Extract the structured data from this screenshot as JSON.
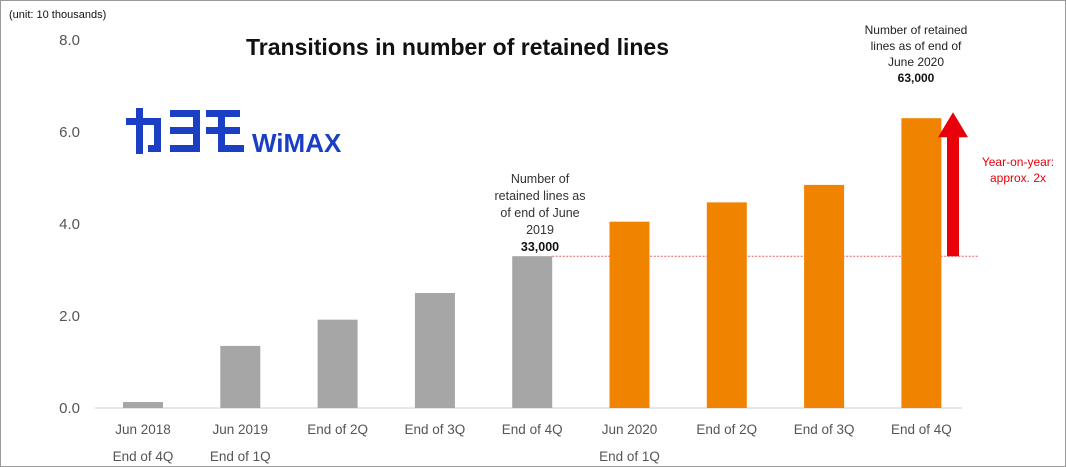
{
  "chart_data": {
    "type": "bar",
    "title": "Transitions in number of retained lines",
    "unit_label": "(unit: 10 thousands)",
    "ylim": [
      0,
      8
    ],
    "yticks": [
      "8.0",
      "6.0",
      "4.0",
      "2.0",
      "0.0"
    ],
    "ytick_values": [
      8,
      6,
      4,
      2,
      0
    ],
    "grid": false,
    "categories": [
      "Jun 2018",
      "Jun 2019",
      "End of 2Q",
      "End of 3Q",
      "End of 4Q",
      "Jun 2020",
      "End of 2Q",
      "End of 3Q",
      "End of 4Q"
    ],
    "sublabels": [
      "End of 4Q",
      "End of 1Q",
      "",
      "",
      "",
      "End of 1Q",
      "",
      "",
      ""
    ],
    "values": [
      0.13,
      1.35,
      1.92,
      2.5,
      3.3,
      4.05,
      4.47,
      4.85,
      6.3
    ],
    "bar_colors": [
      "#a6a6a6",
      "#a6a6a6",
      "#a6a6a6",
      "#a6a6a6",
      "#a6a6a6",
      "#f08300",
      "#f08300",
      "#f08300",
      "#f08300"
    ],
    "reference_line": {
      "value": 3.3,
      "color": "#e06060"
    },
    "annotations": {
      "left_text": [
        "Number of",
        "retained lines as",
        "of end of June",
        "2019"
      ],
      "left_value": "33,000",
      "right_text": [
        "Number of retained",
        "lines as of end of",
        "June 2020"
      ],
      "right_value": "63,000",
      "yoy_text": [
        "Year-on-year:",
        "approx. 2x"
      ]
    },
    "arrow_color": "#e8000b"
  },
  "logo": {
    "text_kana": "カシモ",
    "text_latin": "WiMAX",
    "color": "#1a3fc4"
  }
}
